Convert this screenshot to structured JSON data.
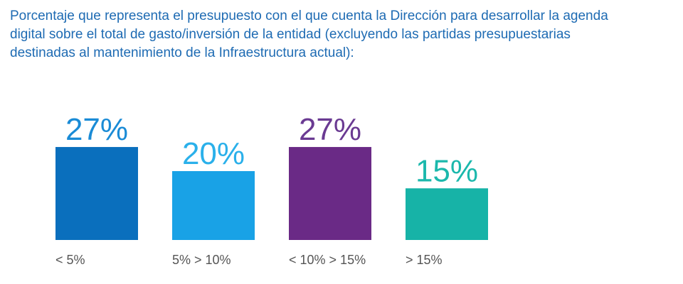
{
  "chart_data": {
    "type": "bar",
    "title": "Porcentaje que representa el presupuesto con el que cuenta la Dirección para desarrollar la agenda digital sobre el total de gasto/inversión de la entidad (excluyendo las partidas presupuestarias destinadas al mantenimiento de la Infraestructura actual):",
    "categories": [
      "< 5%",
      "5% > 10%",
      "< 10% > 15%",
      "> 15%"
    ],
    "values": [
      27,
      20,
      27,
      15
    ],
    "value_labels": [
      "27%",
      "20%",
      "27%",
      "15%"
    ],
    "colors": [
      "#0a6fbd",
      "#19a2e6",
      "#6a2a86",
      "#17b3a7"
    ],
    "label_colors": [
      "#1a8bd6",
      "#2ab0ea",
      "#6a3a92",
      "#1bb8ac"
    ],
    "ylim": [
      0,
      30
    ],
    "xlabel": "",
    "ylabel": "",
    "grid": false
  }
}
